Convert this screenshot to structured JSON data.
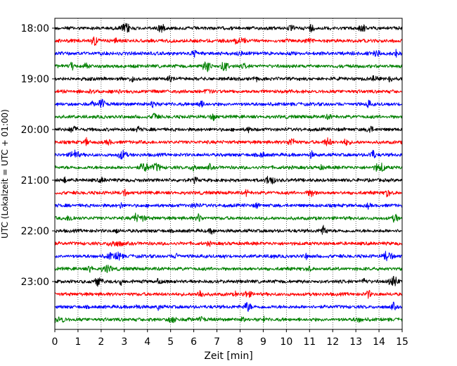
{
  "chart_data": {
    "type": "line",
    "title": "",
    "xlabel": "Zeit  [min]",
    "ylabel": "UTC (Lokalzeit = UTC + 01:00)",
    "xlim": [
      0,
      15
    ],
    "x_ticks": [
      "0",
      "1",
      "2",
      "3",
      "4",
      "5",
      "6",
      "7",
      "8",
      "9",
      "10",
      "11",
      "12",
      "13",
      "14",
      "15"
    ],
    "y_ticks": [
      "18:00",
      "19:00",
      "20:00",
      "21:00",
      "22:00",
      "23:00"
    ],
    "grid": "vertical-dotted",
    "trace_colors": [
      "#000000",
      "#ff0000",
      "#0000ff",
      "#008000"
    ],
    "series": [
      {
        "hour": "18",
        "minute": "00"
      },
      {
        "hour": "18",
        "minute": "15"
      },
      {
        "hour": "18",
        "minute": "30"
      },
      {
        "hour": "18",
        "minute": "45"
      },
      {
        "hour": "19",
        "minute": "00"
      },
      {
        "hour": "19",
        "minute": "15"
      },
      {
        "hour": "19",
        "minute": "30"
      },
      {
        "hour": "19",
        "minute": "45"
      },
      {
        "hour": "20",
        "minute": "00"
      },
      {
        "hour": "20",
        "minute": "15"
      },
      {
        "hour": "20",
        "minute": "30"
      },
      {
        "hour": "20",
        "minute": "45"
      },
      {
        "hour": "21",
        "minute": "00"
      },
      {
        "hour": "21",
        "minute": "15"
      },
      {
        "hour": "21",
        "minute": "30"
      },
      {
        "hour": "21",
        "minute": "45"
      },
      {
        "hour": "22",
        "minute": "00"
      },
      {
        "hour": "22",
        "minute": "15"
      },
      {
        "hour": "22",
        "minute": "30"
      },
      {
        "hour": "22",
        "minute": "45"
      },
      {
        "hour": "23",
        "minute": "00"
      },
      {
        "hour": "23",
        "minute": "15"
      },
      {
        "hour": "23",
        "minute": "30"
      },
      {
        "hour": "23",
        "minute": "45"
      }
    ]
  }
}
